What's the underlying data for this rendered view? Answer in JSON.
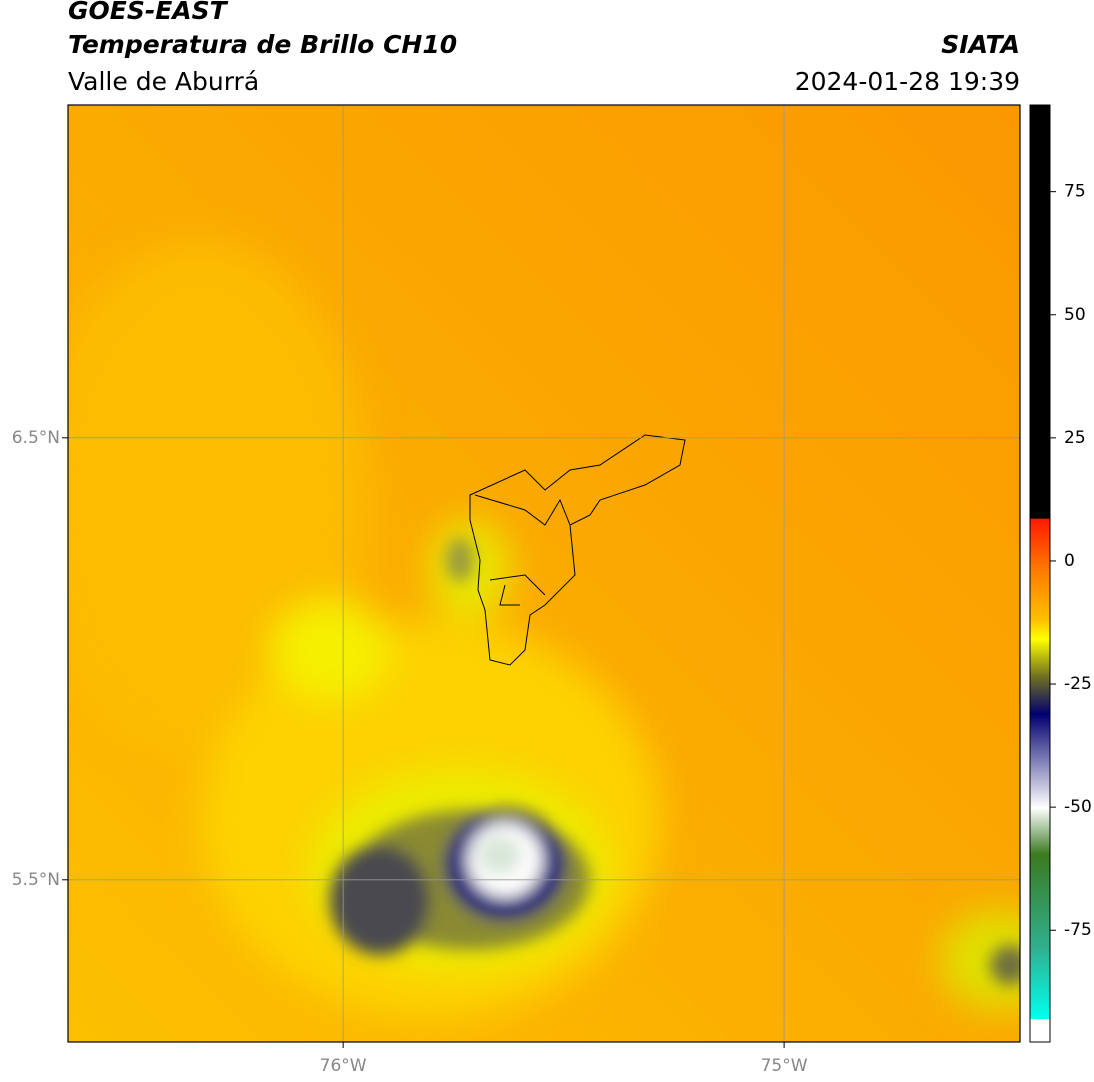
{
  "header": {
    "title": "GOES-EAST",
    "subtitle": "Temperatura de Brillo CH10",
    "region": "Valle de Aburrá",
    "source": "SIATA",
    "datetime": "2024-01-28 19:39"
  },
  "map": {
    "xlim": [
      -76.624,
      -74.465
    ],
    "ylim": [
      5.133,
      7.253
    ],
    "xticks": [
      {
        "value": -76,
        "label": "76°W"
      },
      {
        "value": -75,
        "label": "75°W"
      }
    ],
    "yticks": [
      {
        "value": 5.5,
        "label": "5.5°N"
      },
      {
        "value": 6.5,
        "label": "6.5°N"
      }
    ],
    "grid": true
  },
  "colorbar": {
    "lim": [
      -97.7,
      92.6
    ],
    "ticks": [
      75,
      50,
      25,
      0,
      -25,
      -50,
      -75
    ]
  }
}
